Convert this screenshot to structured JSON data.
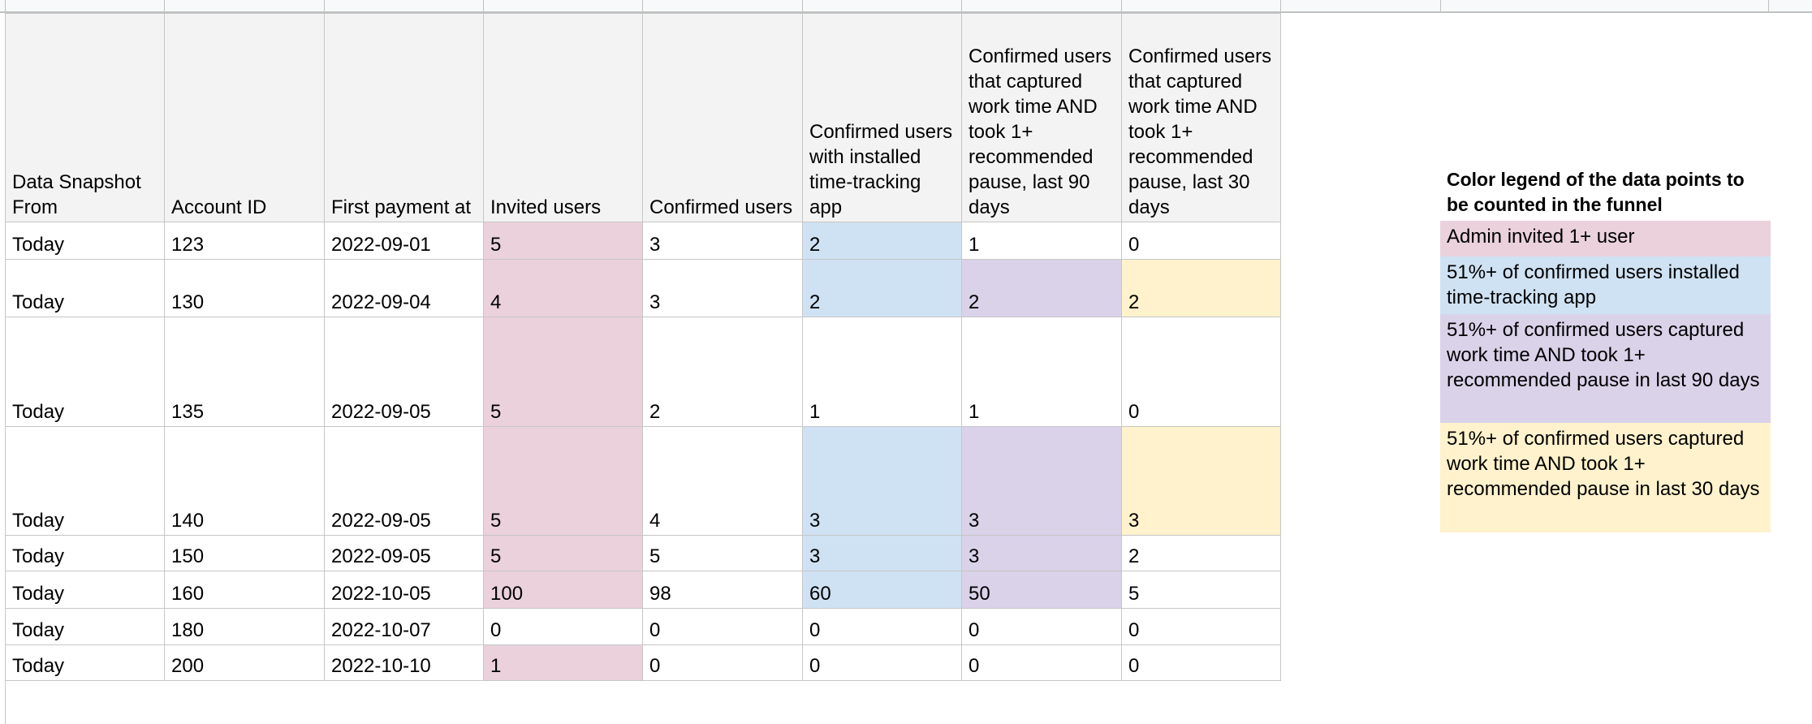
{
  "colors": {
    "header_bg": "#f3f3f3",
    "invited": "#ead1dc",
    "installed": "#cfe2f3",
    "pause_90": "#d9d2e9",
    "pause_30": "#fff2cc"
  },
  "table": {
    "headers": [
      "Data Snapshot From",
      "Account ID",
      "First payment at",
      "Invited users",
      "Confirmed users",
      "Confirmed users with installed time-tracking app",
      "Confirmed users that captured work time AND took 1+ recommended pause, last 90 days",
      "Confirmed users that captured work time AND took 1+ recommended pause, last 30 days"
    ],
    "rows": [
      {
        "cells": [
          "Today",
          "123",
          "2022-09-01",
          "5",
          "3",
          "2",
          "1",
          "0"
        ],
        "highlight": [
          "",
          "",
          "",
          "pink",
          "",
          "blue",
          "",
          ""
        ]
      },
      {
        "cells": [
          "Today",
          "130",
          "2022-09-04",
          "4",
          "3",
          "2",
          "2",
          "2"
        ],
        "highlight": [
          "",
          "",
          "",
          "pink",
          "",
          "blue",
          "purple",
          "yellow"
        ]
      },
      {
        "cells": [
          "Today",
          "135",
          "2022-09-05",
          "5",
          "2",
          "1",
          "1",
          "0"
        ],
        "highlight": [
          "",
          "",
          "",
          "pink",
          "",
          "",
          "",
          ""
        ]
      },
      {
        "cells": [
          "Today",
          "140",
          "2022-09-05",
          "5",
          "4",
          "3",
          "3",
          "3"
        ],
        "highlight": [
          "",
          "",
          "",
          "pink",
          "",
          "blue",
          "purple",
          "yellow"
        ]
      },
      {
        "cells": [
          "Today",
          "150",
          "2022-09-05",
          "5",
          "5",
          "3",
          "3",
          "2"
        ],
        "highlight": [
          "",
          "",
          "",
          "pink",
          "",
          "blue",
          "purple",
          ""
        ]
      },
      {
        "cells": [
          "Today",
          "160",
          "2022-10-05",
          "100",
          "98",
          "60",
          "50",
          "5"
        ],
        "highlight": [
          "",
          "",
          "",
          "pink",
          "",
          "blue",
          "purple",
          ""
        ]
      },
      {
        "cells": [
          "Today",
          "180",
          "2022-10-07",
          "0",
          "0",
          "0",
          "0",
          "0"
        ],
        "highlight": [
          "",
          "",
          "",
          "",
          "",
          "",
          "",
          ""
        ]
      },
      {
        "cells": [
          "Today",
          "200",
          "2022-10-10",
          "1",
          "0",
          "0",
          "0",
          "0"
        ],
        "highlight": [
          "",
          "",
          "",
          "pink",
          "",
          "",
          "",
          ""
        ]
      }
    ]
  },
  "legend": {
    "title": "Color legend of the data points to be counted in the funnel",
    "items": [
      {
        "label": "Admin invited 1+ user",
        "color": "pink"
      },
      {
        "label": "51%+ of confirmed users installed time-tracking app",
        "color": "blue"
      },
      {
        "label": "51%+ of confirmed users captured work time AND took 1+ recommended pause in last 90 days",
        "color": "purple"
      },
      {
        "label": "51%+ of confirmed users captured work time AND took 1+ recommended pause in last 30 days",
        "color": "yellow"
      }
    ]
  }
}
